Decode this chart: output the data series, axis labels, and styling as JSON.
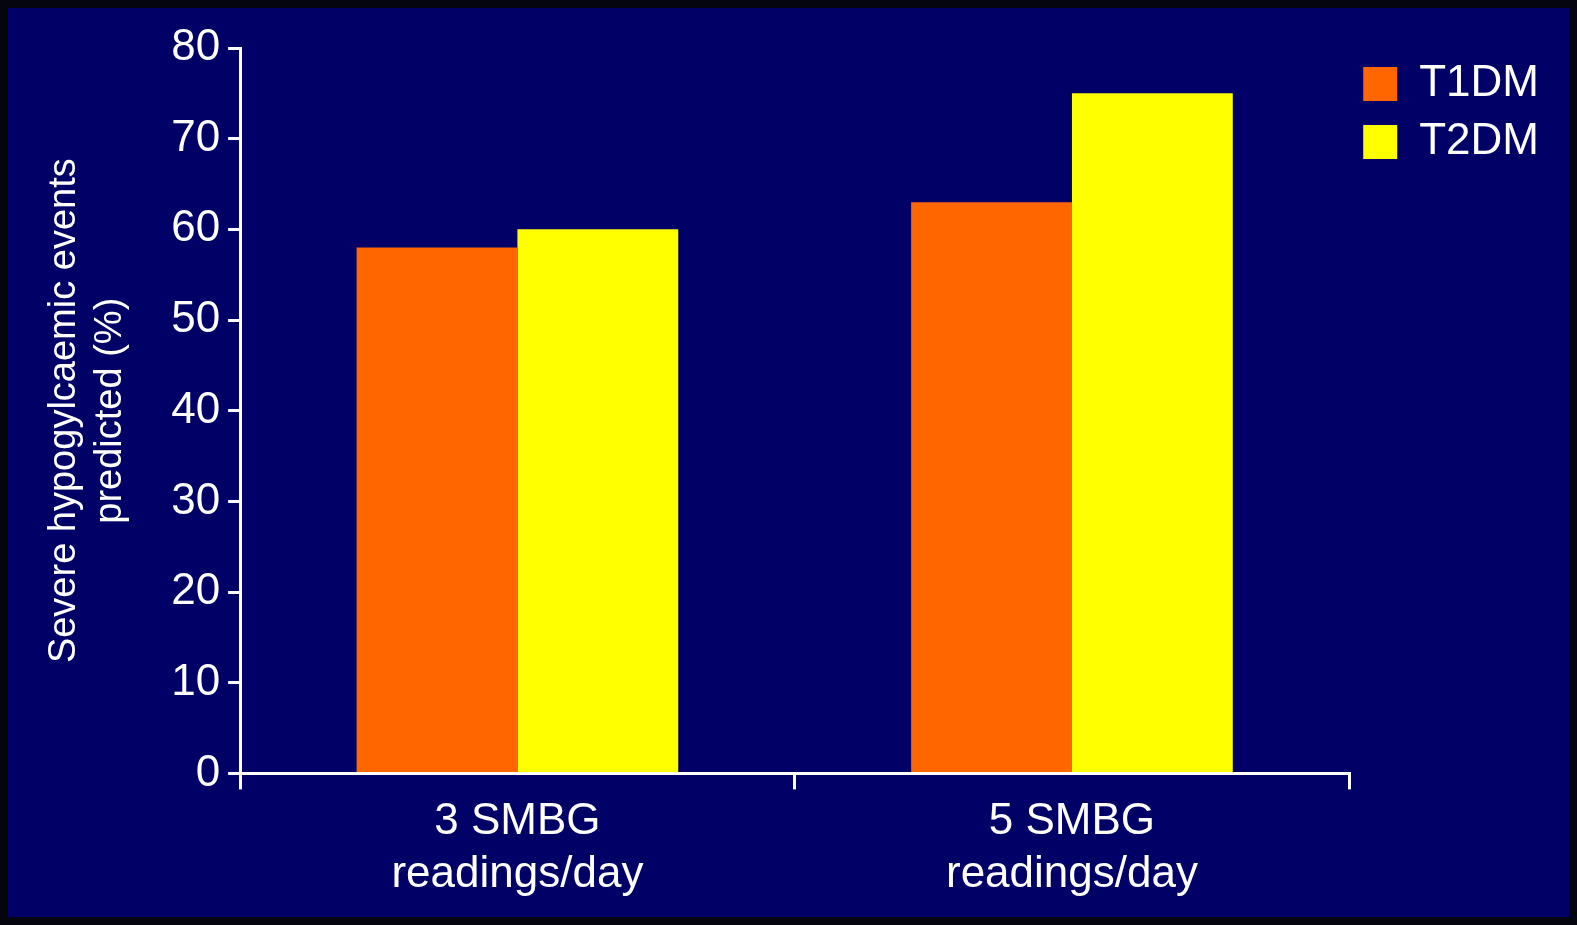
{
  "chart_data": {
    "type": "bar",
    "ylabel": "Severe hypogylcaemic events predicted (%)",
    "categories": [
      "3 SMBG readings/day",
      "5 SMBG readings/day"
    ],
    "series": [
      {
        "name": "T1DM",
        "color": "#ff6600",
        "values": [
          58,
          63
        ]
      },
      {
        "name": "T2DM",
        "color": "#ffff00",
        "values": [
          60,
          75
        ]
      }
    ],
    "ylim": [
      0,
      80
    ],
    "yticks": [
      0,
      10,
      20,
      30,
      40,
      50,
      60,
      70,
      80
    ],
    "grid": false,
    "legend": "top right"
  }
}
